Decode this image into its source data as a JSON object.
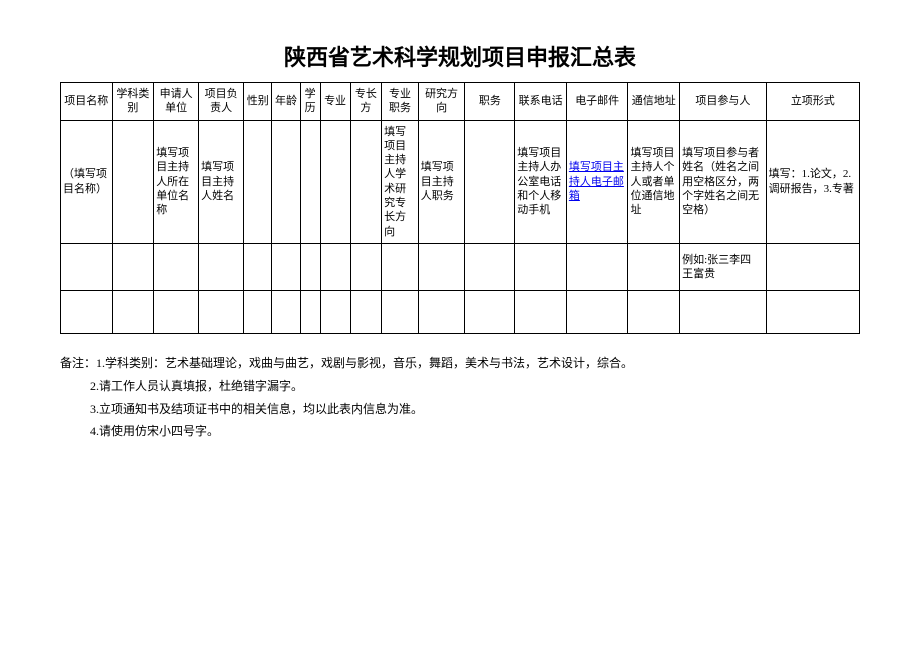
{
  "title": "陕西省艺术科学规划项目申报汇总表",
  "headers": [
    "项目名称",
    "学科类别",
    "申请人单位",
    "项目负责人",
    "性别",
    "年龄",
    "学历",
    "专业",
    "专长方",
    "专业职务",
    "研究方向",
    "职务",
    "联系电话",
    "电子邮件",
    "通信地址",
    "项目参与人",
    "立项形式"
  ],
  "row1": {
    "c0": "（填写项目名称）",
    "c2": "填写项目主持人所在单位名称",
    "c3": "填写项目主持人姓名",
    "c9": "填写项目主持人学术研究专长方向",
    "c10": "填写项目主持人职务",
    "c12": "填写项目主持人办公室电话和个人移动手机",
    "c13": "填写项目主持人电子邮箱",
    "c14": "填写项目主持人个人或者单位通信地址",
    "c15": "填写项目参与者姓名（姓名之间用空格区分，两个字姓名之间无空格）",
    "c16": "填写：1.论文，2.调研报告，3.专著"
  },
  "row2": {
    "c15": "例如:张三李四 王富贵"
  },
  "notes": {
    "n1": "备注：1.学科类别：艺术基础理论，戏曲与曲艺，戏剧与影视，音乐，舞蹈，美术与书法，艺术设计，综合。",
    "n2": "2.请工作人员认真填报，杜绝错字漏字。",
    "n3": "3.立项通知书及结项证书中的相关信息，均以此表内信息为准。",
    "n4": "4.请使用仿宋小四号字。"
  },
  "colwidths": [
    "6.2%",
    "5%",
    "5.4%",
    "5.4%",
    "3.4%",
    "3.4%",
    "2.4%",
    "3.6%",
    "3.8%",
    "4.4%",
    "5.6%",
    "6%",
    "6.2%",
    "7.4%",
    "6.2%",
    "10.4%",
    "11.2%"
  ]
}
